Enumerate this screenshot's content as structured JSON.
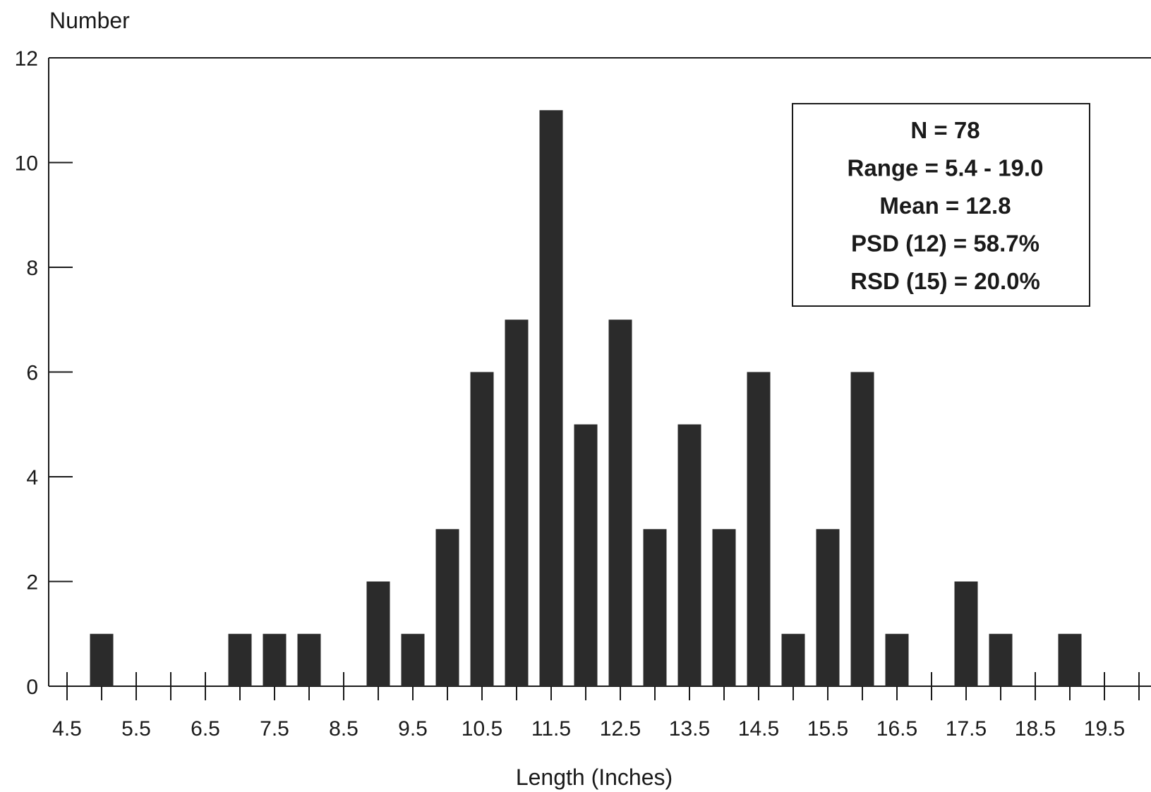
{
  "chart_data": {
    "type": "bar",
    "title": "",
    "ylabel": "Number",
    "xlabel": "Length (Inches)",
    "ylim": [
      0,
      12
    ],
    "yticks": [
      0,
      2,
      4,
      6,
      8,
      10,
      12
    ],
    "xlim": [
      4.4,
      20.0
    ],
    "xticks": [
      "4.5",
      "5.5",
      "6.5",
      "7.5",
      "8.5",
      "9.5",
      "10.5",
      "11.5",
      "12.5",
      "13.5",
      "14.5",
      "15.5",
      "16.5",
      "17.5",
      "18.5",
      "19.5"
    ],
    "x": [
      5.0,
      7.0,
      7.5,
      8.0,
      9.0,
      9.5,
      10.0,
      10.5,
      11.0,
      11.5,
      12.0,
      12.5,
      13.0,
      13.5,
      14.0,
      14.5,
      15.0,
      15.5,
      16.0,
      16.5,
      17.5,
      18.0,
      19.0
    ],
    "values": [
      1,
      1,
      1,
      1,
      2,
      1,
      3,
      6,
      7,
      11,
      5,
      7,
      3,
      5,
      3,
      6,
      1,
      3,
      6,
      1,
      2,
      1,
      1
    ],
    "bar_color": "#2b2b2b",
    "grid": false,
    "stats_box": {
      "location": "top-right",
      "lines": [
        "N = 78",
        "Range = 5.4 - 19.0",
        "Mean = 12.8",
        "PSD (12) = 58.7%",
        "RSD (15) = 20.0%"
      ]
    }
  }
}
